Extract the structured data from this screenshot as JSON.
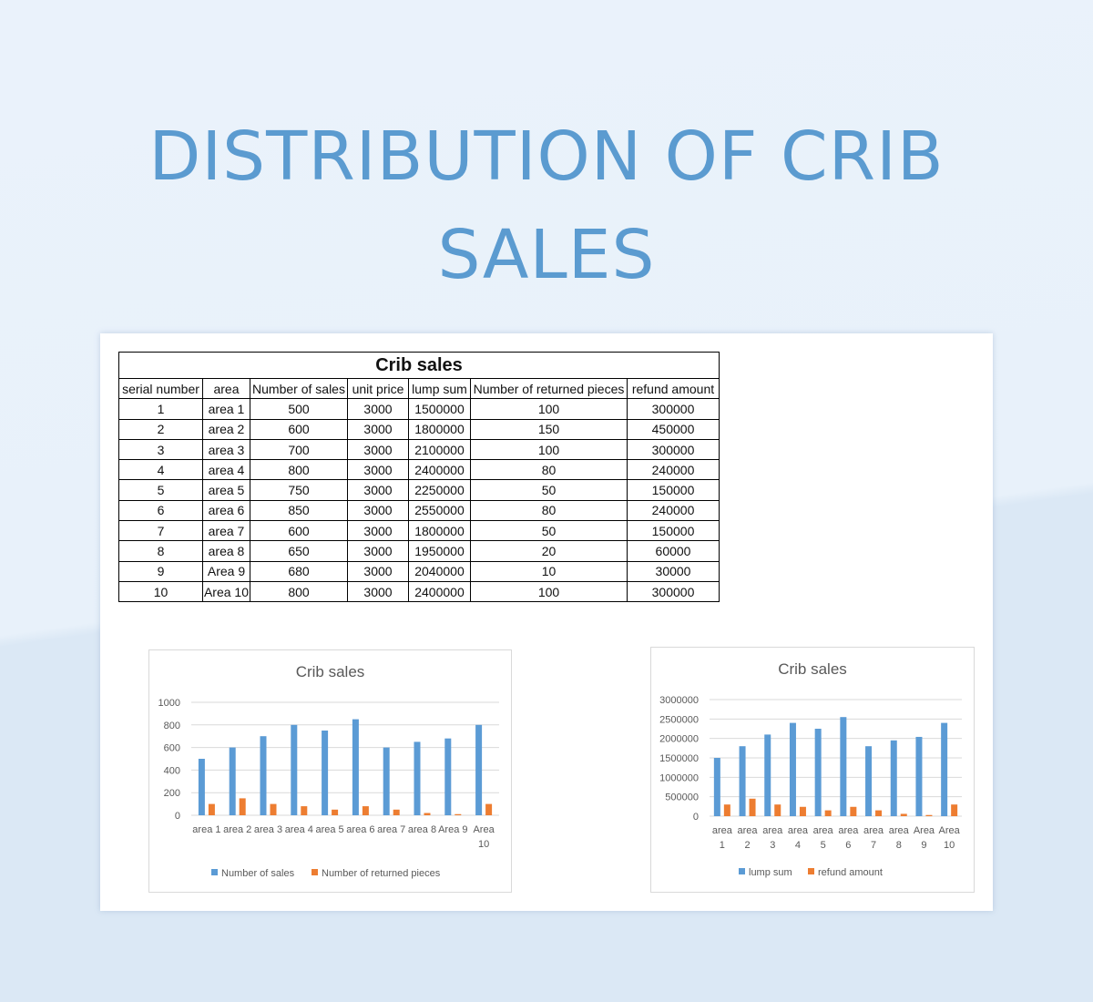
{
  "page": {
    "title_line1": "DISTRIBUTION OF CRIB",
    "title_line2": "SALES"
  },
  "table": {
    "caption": "Crib sales",
    "headers": [
      "serial number",
      "area",
      "Number of sales",
      "unit price",
      "lump sum",
      "Number of returned pieces",
      "refund amount"
    ],
    "rows": [
      [
        "1",
        "area 1",
        "500",
        "3000",
        "1500000",
        "100",
        "300000"
      ],
      [
        "2",
        "area 2",
        "600",
        "3000",
        "1800000",
        "150",
        "450000"
      ],
      [
        "3",
        "area 3",
        "700",
        "3000",
        "2100000",
        "100",
        "300000"
      ],
      [
        "4",
        "area 4",
        "800",
        "3000",
        "2400000",
        "80",
        "240000"
      ],
      [
        "5",
        "area 5",
        "750",
        "3000",
        "2250000",
        "50",
        "150000"
      ],
      [
        "6",
        "area 6",
        "850",
        "3000",
        "2550000",
        "80",
        "240000"
      ],
      [
        "7",
        "area 7",
        "600",
        "3000",
        "1800000",
        "50",
        "150000"
      ],
      [
        "8",
        "area 8",
        "650",
        "3000",
        "1950000",
        "20",
        "60000"
      ],
      [
        "9",
        "Area 9",
        "680",
        "3000",
        "2040000",
        "10",
        "30000"
      ],
      [
        "10",
        "Area 10",
        "800",
        "3000",
        "2400000",
        "100",
        "300000"
      ]
    ]
  },
  "colors": {
    "series1": "#5b9bd5",
    "series2": "#ed7d31",
    "grid": "#d9d9d9",
    "text": "#595959"
  },
  "chart_data": [
    {
      "type": "bar",
      "title": "Crib sales",
      "categories": [
        "area 1",
        "area 2",
        "area 3",
        "area 4",
        "area 5",
        "area 6",
        "area 7",
        "area 8",
        "Area 9",
        "Area 10"
      ],
      "series": [
        {
          "name": "Number of sales",
          "values": [
            500,
            600,
            700,
            800,
            750,
            850,
            600,
            650,
            680,
            800
          ]
        },
        {
          "name": "Number of returned pieces",
          "values": [
            100,
            150,
            100,
            80,
            50,
            80,
            50,
            20,
            10,
            100
          ]
        }
      ],
      "yticks": [
        "0",
        "200",
        "400",
        "600",
        "800",
        "1000"
      ],
      "ylim": [
        0,
        1000
      ],
      "grid": true,
      "legend": "bottom"
    },
    {
      "type": "bar",
      "title": "Crib sales",
      "categories": [
        "area 1",
        "area 2",
        "area 3",
        "area 4",
        "area 5",
        "area 6",
        "area 7",
        "area 8",
        "Area 9",
        "Area 10"
      ],
      "series": [
        {
          "name": "lump sum",
          "values": [
            1500000,
            1800000,
            2100000,
            2400000,
            2250000,
            2550000,
            1800000,
            1950000,
            2040000,
            2400000
          ]
        },
        {
          "name": "refund amount",
          "values": [
            300000,
            450000,
            300000,
            240000,
            150000,
            240000,
            150000,
            60000,
            30000,
            300000
          ]
        }
      ],
      "yticks": [
        "0",
        "500000",
        "1000000",
        "1500000",
        "2000000",
        "2500000",
        "3000000"
      ],
      "ylim": [
        0,
        3000000
      ],
      "grid": true,
      "legend": "bottom"
    }
  ]
}
